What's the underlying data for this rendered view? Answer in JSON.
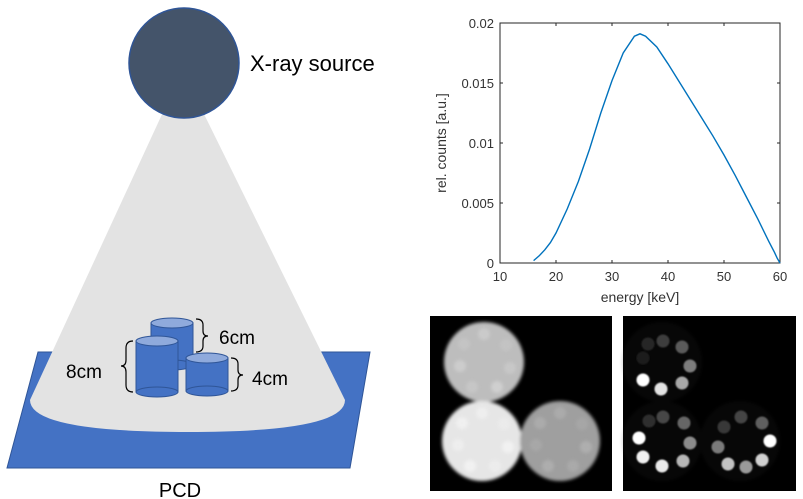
{
  "diagram": {
    "source_label": "X-ray source",
    "detector_label": "PCD",
    "dimensions": {
      "height_tall": "8cm",
      "height_mid": "6cm",
      "height_short": "4cm"
    },
    "colors": {
      "source": "#44546a",
      "detector": "#4472c4",
      "beam": "#e3e3e3",
      "cylinder": "#4472c4",
      "cylinder_top": "#8faadc"
    }
  },
  "chart_data": {
    "type": "line",
    "xlabel": "energy [keV]",
    "ylabel": "rel. counts [a.u.]",
    "xlim": [
      10,
      60
    ],
    "ylim": [
      0,
      0.02
    ],
    "xticks": [
      "10",
      "20",
      "30",
      "40",
      "50",
      "60"
    ],
    "yticks": [
      "0",
      "0.005",
      "0.01",
      "0.015",
      "0.02"
    ],
    "line_color": "#0072bd",
    "series": [
      {
        "x": [
          16,
          17,
          18,
          19,
          20,
          22,
          24,
          26,
          28,
          30,
          32,
          34,
          35,
          36,
          38,
          40,
          42,
          44,
          46,
          48,
          50,
          52,
          54,
          56,
          58,
          59,
          59.5,
          60
        ],
        "y": [
          0.0002,
          0.0006,
          0.0011,
          0.0017,
          0.0025,
          0.0045,
          0.0068,
          0.0095,
          0.0125,
          0.0152,
          0.0175,
          0.0189,
          0.0191,
          0.0189,
          0.018,
          0.0166,
          0.0151,
          0.0136,
          0.0121,
          0.0106,
          0.009,
          0.0073,
          0.0055,
          0.0037,
          0.0018,
          0.0009,
          0.0004,
          0.0
        ]
      }
    ]
  }
}
